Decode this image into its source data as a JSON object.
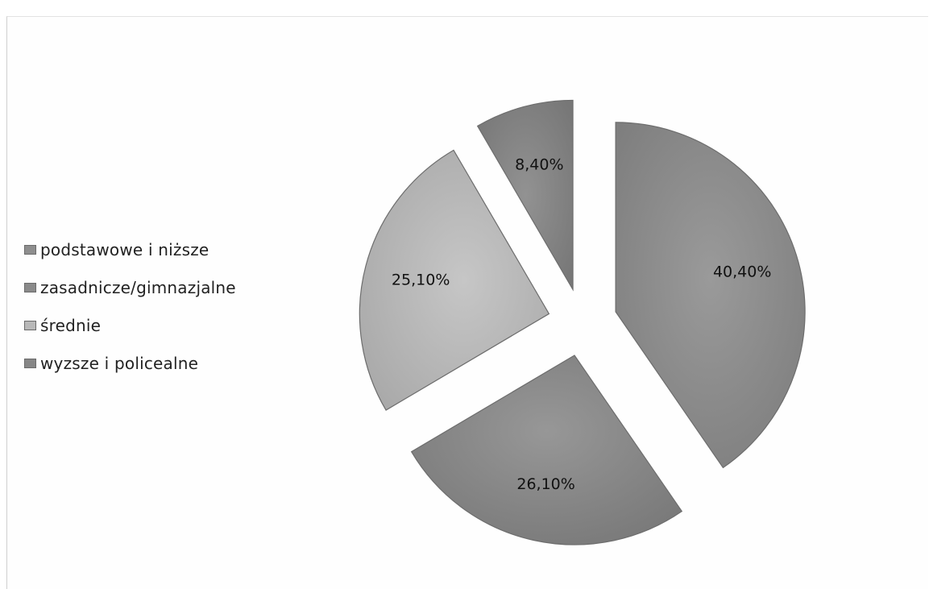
{
  "chart_data": {
    "type": "pie",
    "categories": [
      "podstawowe i niższe",
      "zasadnicze/gimnazjalne",
      "średnie",
      "wyzsze i policealne"
    ],
    "values": [
      40.4,
      26.1,
      25.1,
      8.4
    ],
    "data_labels": [
      "40,40%",
      "26,10%",
      "25,10%",
      "8,40%"
    ],
    "exploded": true,
    "legend_position": "left",
    "colors": [
      "#8e8e8e",
      "#8a8a8a",
      "#b8b8b8",
      "#868686"
    ]
  }
}
